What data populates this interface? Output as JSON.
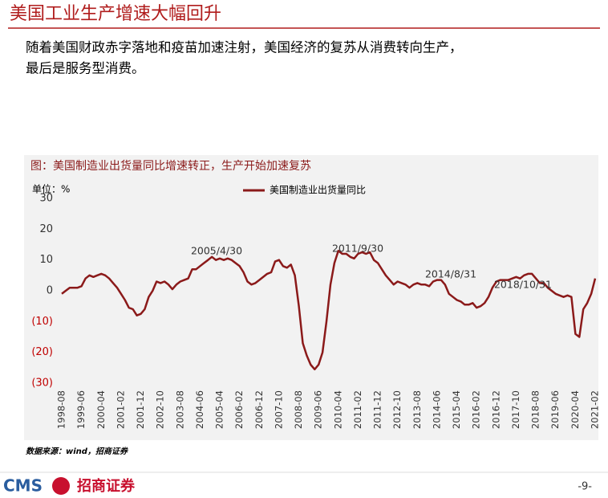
{
  "header": {
    "title": "美国工业生产增速大幅回升"
  },
  "body": {
    "lines": [
      "随着美国财政赤字落地和疫苗加速注射，美国经济的复苏从消费转向生产，",
      "最后是服务型消费。"
    ]
  },
  "chart_data": {
    "type": "line",
    "title": "图：美国制造业出货量同比增速转正，生产开始加速复苏",
    "unit_label": "单位：%",
    "categories": [
      "1998-08",
      null,
      null,
      null,
      null,
      "1999-06",
      null,
      null,
      null,
      null,
      "2000-04",
      null,
      null,
      null,
      null,
      "2001-02",
      null,
      null,
      null,
      null,
      "2001-12",
      null,
      null,
      null,
      null,
      "2002-10",
      null,
      null,
      null,
      null,
      "2003-08",
      null,
      null,
      null,
      null,
      "2004-06",
      null,
      null,
      null,
      null,
      "2005-04",
      null,
      null,
      null,
      null,
      "2006-02",
      null,
      null,
      null,
      null,
      "2006-12",
      null,
      null,
      null,
      null,
      "2007-10",
      null,
      null,
      null,
      null,
      "2008-08",
      null,
      null,
      null,
      null,
      "2009-06",
      null,
      null,
      null,
      null,
      "2010-04",
      null,
      null,
      null,
      null,
      "2011-02",
      null,
      null,
      null,
      null,
      "2011-12",
      null,
      null,
      null,
      null,
      "2012-10",
      null,
      null,
      null,
      null,
      "2013-08",
      null,
      null,
      null,
      null,
      "2014-06",
      null,
      null,
      null,
      null,
      "2015-04",
      null,
      null,
      null,
      null,
      "2016-02",
      null,
      null,
      null,
      null,
      "2016-12",
      null,
      null,
      null,
      null,
      "2017-10",
      null,
      null,
      null,
      null,
      "2018-08",
      null,
      null,
      null,
      null,
      "2019-06",
      null,
      null,
      null,
      null,
      "2020-04",
      null,
      null,
      null,
      null,
      "2021-02"
    ],
    "series": [
      {
        "name": "美国制造业出货量同比",
        "color": "#8b1a1a",
        "values": [
          -1,
          0,
          1,
          1,
          1,
          1.5,
          4,
          5,
          4.5,
          5,
          5.5,
          5,
          4,
          2.5,
          1,
          -1,
          -3,
          -5.5,
          -6,
          -8,
          -7.5,
          -6,
          -2,
          0,
          3,
          2.5,
          3,
          2,
          0.5,
          2,
          3,
          3.5,
          4,
          7,
          7,
          8,
          9,
          10,
          11,
          10,
          10.5,
          10,
          10.5,
          10,
          9,
          8,
          6,
          3,
          2,
          2.5,
          3.5,
          4.5,
          5.5,
          6,
          9.5,
          10,
          8,
          7.5,
          8.5,
          5,
          -5,
          -17,
          -21,
          -24,
          -25.5,
          -24,
          -20,
          -10,
          2,
          9,
          13,
          12,
          12,
          11,
          10.5,
          12,
          12.5,
          12,
          12.5,
          10,
          9,
          7,
          5,
          3.5,
          2,
          3,
          2.5,
          2,
          1,
          2,
          2.5,
          2,
          2,
          1.5,
          3,
          3.5,
          3.5,
          2,
          -1,
          -2,
          -3,
          -3.5,
          -4.5,
          -4.5,
          -4,
          -5.5,
          -5,
          -4,
          -2,
          1,
          3,
          3.5,
          3.5,
          3.5,
          4,
          4.5,
          4,
          5,
          5.5,
          5.5,
          4,
          2.5,
          2.5,
          1,
          0,
          -1,
          -1.5,
          -2,
          -1.5,
          -2,
          -14,
          -15,
          -6,
          -4,
          -1,
          4
        ]
      }
    ],
    "annotations": [
      "2005/4/30",
      "2011/9/30",
      "2014/8/31",
      "2018/10/31"
    ],
    "ylim": [
      -30,
      30
    ],
    "yticks": [
      {
        "value": -30,
        "label": "(30)"
      },
      {
        "value": -20,
        "label": "(20)"
      },
      {
        "value": -10,
        "label": "(10)"
      },
      0,
      10,
      20,
      30
    ],
    "grid": false,
    "legend": "top"
  },
  "source": "数据来源：wind，招商证券",
  "footer": {
    "logo_latin": "CMS",
    "logo_cn": "招商证券",
    "page": "-9-"
  }
}
